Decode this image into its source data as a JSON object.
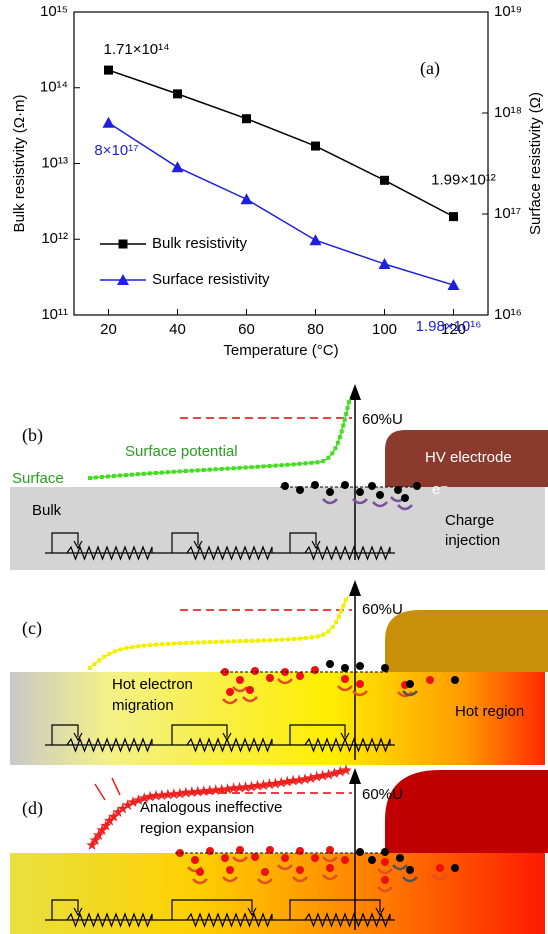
{
  "chart_data": {
    "type": "line",
    "panel_label": "(a)",
    "x_label": "Temperature (°C)",
    "y_label": "Bulk resistivity (Ω·m)",
    "y2_label": "Surface resistivity (Ω)",
    "x": [
      20,
      40,
      60,
      80,
      100,
      120
    ],
    "xlim": [
      10,
      130
    ],
    "xticks": [
      20,
      40,
      60,
      80,
      100,
      120
    ],
    "ylim": [
      100000000000.0,
      1000000000000000.0
    ],
    "y_log": true,
    "yticks": [
      {
        "value": 100000000000.0,
        "label": "10¹¹"
      },
      {
        "value": 1000000000000.0,
        "label": "10¹²"
      },
      {
        "value": 10000000000000.0,
        "label": "10¹³"
      },
      {
        "value": 100000000000000.0,
        "label": "10¹⁴"
      },
      {
        "value": 1000000000000000.0,
        "label": "10¹⁵"
      }
    ],
    "y2lim": [
      1e+16,
      1e+19
    ],
    "y2_log": true,
    "y2ticks": [
      {
        "value": 1e+16,
        "label": "10¹⁶"
      },
      {
        "value": 1e+17,
        "label": "10¹⁷"
      },
      {
        "value": 1e+18,
        "label": "10¹⁸"
      },
      {
        "value": 1e+19,
        "label": "10¹⁹"
      }
    ],
    "legend": "lower left",
    "series": [
      {
        "name": "Bulk resistivity",
        "color": "#000000",
        "marker": "square",
        "values": [
          171000000000000.0,
          83000000000000.0,
          39000000000000.0,
          17000000000000.0,
          6000000000000.0,
          1990000000000.0
        ],
        "value_labels": [
          "1.71×10¹⁴",
          null,
          null,
          null,
          null,
          "1.99×10¹²"
        ]
      },
      {
        "name": "Surface resistivity",
        "color": "#1f1fe0",
        "marker": "triangle",
        "axis": "y2",
        "values": [
          8e+17,
          2.9e+17,
          1.4e+17,
          5.5e+16,
          3.2e+16,
          1.98e+16
        ],
        "value_labels": [
          "8×10¹⁷",
          null,
          null,
          null,
          null,
          "1.98×10¹⁶"
        ]
      }
    ]
  },
  "panel_b": {
    "label": "(b)",
    "surface_potential": "Surface potential",
    "surface": "Surface",
    "level": "60%U",
    "electrode": "HV electrode",
    "carrier": "e⁻",
    "bulk": "Bulk",
    "charge_injection": [
      "Charge",
      "injection"
    ]
  },
  "panel_c": {
    "label": "(c)",
    "level": "60%U",
    "hot_electron_migration": [
      "Hot electron",
      "migration"
    ],
    "hot_region": "Hot region"
  },
  "panel_d": {
    "label": "(d)",
    "level": "60%U",
    "expansion": [
      "Analogous ineffective",
      "region expansion"
    ]
  }
}
